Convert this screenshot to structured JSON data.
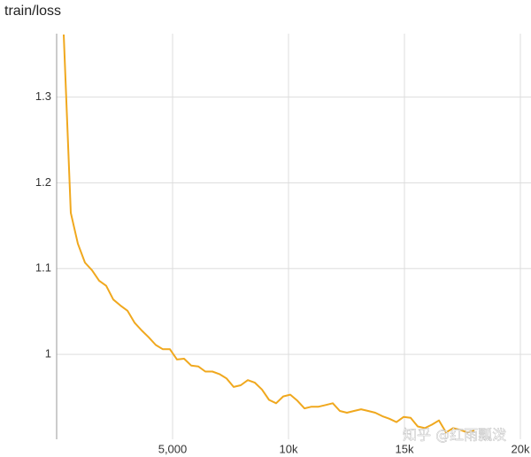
{
  "chart_data": {
    "type": "line",
    "title": "train/loss",
    "watermark": "知乎 @红雨瓢泼",
    "xlim": [
      0,
      20000
    ],
    "ylim": [
      0.901,
      1.374
    ],
    "xticks": [
      {
        "value": 5000,
        "label": "5,000"
      },
      {
        "value": 10000,
        "label": "10k"
      },
      {
        "value": 15000,
        "label": "15k"
      },
      {
        "value": 20000,
        "label": "20k"
      }
    ],
    "yticks": [
      1,
      1.1,
      1.2,
      1.3
    ],
    "grid": true,
    "x": [
      305,
      611,
      916,
      1221,
      1527,
      1832,
      2137,
      2443,
      2748,
      3053,
      3359,
      3664,
      3969,
      4275,
      4580,
      4885,
      5191,
      5496,
      5802,
      6107,
      6412,
      6718,
      7023,
      7328,
      7634,
      7939,
      8244,
      8550,
      8855,
      9160,
      9466,
      9771,
      10076,
      10382,
      10687,
      10992,
      11298,
      11603,
      11908,
      12214,
      12519,
      12824,
      13130,
      13435,
      13740,
      14046,
      14351,
      14656,
      14962,
      15267,
      15573,
      15878,
      16183,
      16489,
      16794,
      17099,
      17405,
      17710,
      18015
    ],
    "series": [
      {
        "color": "#f0a81e",
        "values": [
          1.373,
          1.165,
          1.129,
          1.107,
          1.098,
          1.086,
          1.08,
          1.064,
          1.057,
          1.051,
          1.037,
          1.028,
          1.02,
          1.011,
          1.006,
          1.006,
          0.994,
          0.995,
          0.987,
          0.986,
          0.98,
          0.98,
          0.977,
          0.972,
          0.962,
          0.964,
          0.97,
          0.967,
          0.959,
          0.947,
          0.943,
          0.951,
          0.953,
          0.946,
          0.937,
          0.939,
          0.939,
          0.941,
          0.943,
          0.934,
          0.932,
          0.934,
          0.936,
          0.934,
          0.932,
          0.928,
          0.925,
          0.921,
          0.927,
          0.926,
          0.916,
          0.914,
          0.918,
          0.923,
          0.909,
          0.914,
          0.912,
          0.909,
          0.911
        ]
      }
    ]
  }
}
